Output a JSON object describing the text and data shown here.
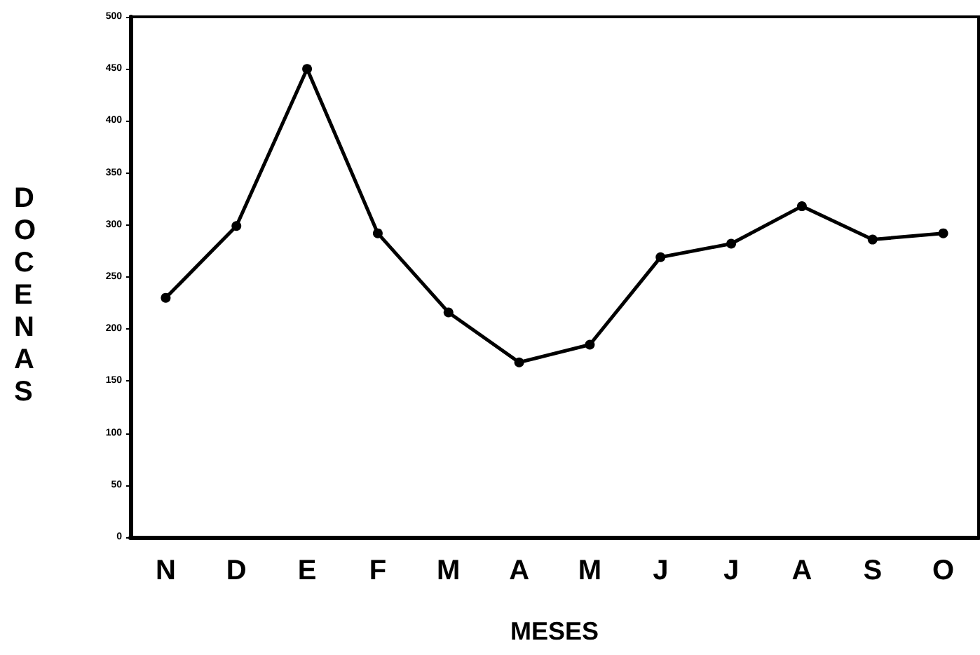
{
  "chart_data": {
    "type": "line",
    "xlabel": "MESES",
    "ylabel": "DOCENAS",
    "categories": [
      "N",
      "D",
      "E",
      "F",
      "M",
      "A",
      "M",
      "J",
      "J",
      "A",
      "S",
      "O"
    ],
    "series": [
      {
        "color": "#000000",
        "values": [
          230,
          299,
          450,
          292,
          216,
          168,
          185,
          269,
          282,
          318,
          286,
          292
        ]
      }
    ],
    "ylim": [
      0,
      500
    ],
    "yticks": [
      0,
      50,
      100,
      150,
      200,
      250,
      300,
      350,
      400,
      450,
      500
    ],
    "grid": false,
    "marker": "circle",
    "line_style": "solid"
  }
}
